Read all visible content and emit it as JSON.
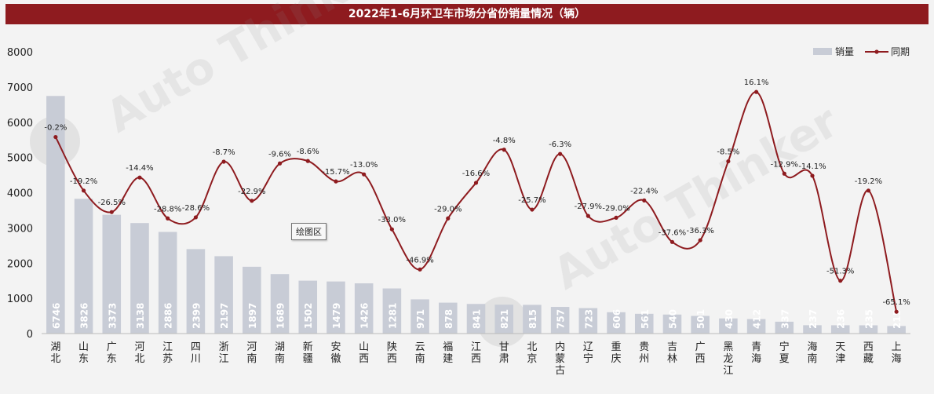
{
  "title": "2022年1-6月环卫车市场分省份销量情况（辆）",
  "plot_area_label": "绘图区",
  "watermark": "Auto Thinker 汽车智库平台",
  "colors": {
    "bar": "#c8ccd6",
    "line": "#8e1b1f",
    "title_bg": "#8e1b1f"
  },
  "chart_data": {
    "type": "bar",
    "categories": [
      "湖北",
      "山东",
      "广东",
      "河北",
      "江苏",
      "四川",
      "浙江",
      "河南",
      "湖南",
      "新疆",
      "安徽",
      "山西",
      "陕西",
      "云南",
      "福建",
      "江西",
      "甘肃",
      "北京",
      "内蒙古",
      "辽宁",
      "重庆",
      "贵州",
      "吉林",
      "广西",
      "黑龙江",
      "青海",
      "宁夏",
      "海南",
      "天津",
      "西藏",
      "上海"
    ],
    "series": [
      {
        "name": "销量",
        "type": "bar",
        "values": [
          6746,
          3826,
          3373,
          3138,
          2886,
          2399,
          2197,
          1897,
          1689,
          1502,
          1479,
          1426,
          1281,
          971,
          878,
          841,
          821,
          815,
          757,
          723,
          606,
          561,
          540,
          501,
          430,
          412,
          337,
          237,
          236,
          235,
          215
        ]
      },
      {
        "name": "同期",
        "type": "line",
        "values": [
          5580,
          4060,
          3450,
          4430,
          3270,
          3300,
          4880,
          3770,
          4830,
          4900,
          4320,
          4520,
          2960,
          1820,
          3270,
          4280,
          5220,
          3520,
          5100,
          3340,
          3290,
          3780,
          2600,
          2650,
          4890,
          6860,
          4540,
          4480,
          1500,
          4060,
          620
        ],
        "labels": [
          "-0.2%",
          "-19.2%",
          "-26.5%",
          "-14.4%",
          "-28.8%",
          "-28.6%",
          "-8.7%",
          "-22.9%",
          "-9.6%",
          "-8.6%",
          "-15.7%",
          "-13.0%",
          "-33.0%",
          "-46.9%",
          "-29.0%",
          "-16.6%",
          "-4.8%",
          "-25.7%",
          "-6.3%",
          "-27.9%",
          "-29.0%",
          "-22.4%",
          "-37.6%",
          "-36.3%",
          "-8.5%",
          "16.1%",
          "-12.9%",
          "-14.1%",
          "-51.3%",
          "-19.2%",
          "-65.1%"
        ]
      }
    ],
    "ylim": [
      0,
      8000
    ],
    "yticks": [
      0,
      1000,
      2000,
      3000,
      4000,
      5000,
      6000,
      7000,
      8000
    ],
    "legend_position": "top-right",
    "grid": false
  }
}
